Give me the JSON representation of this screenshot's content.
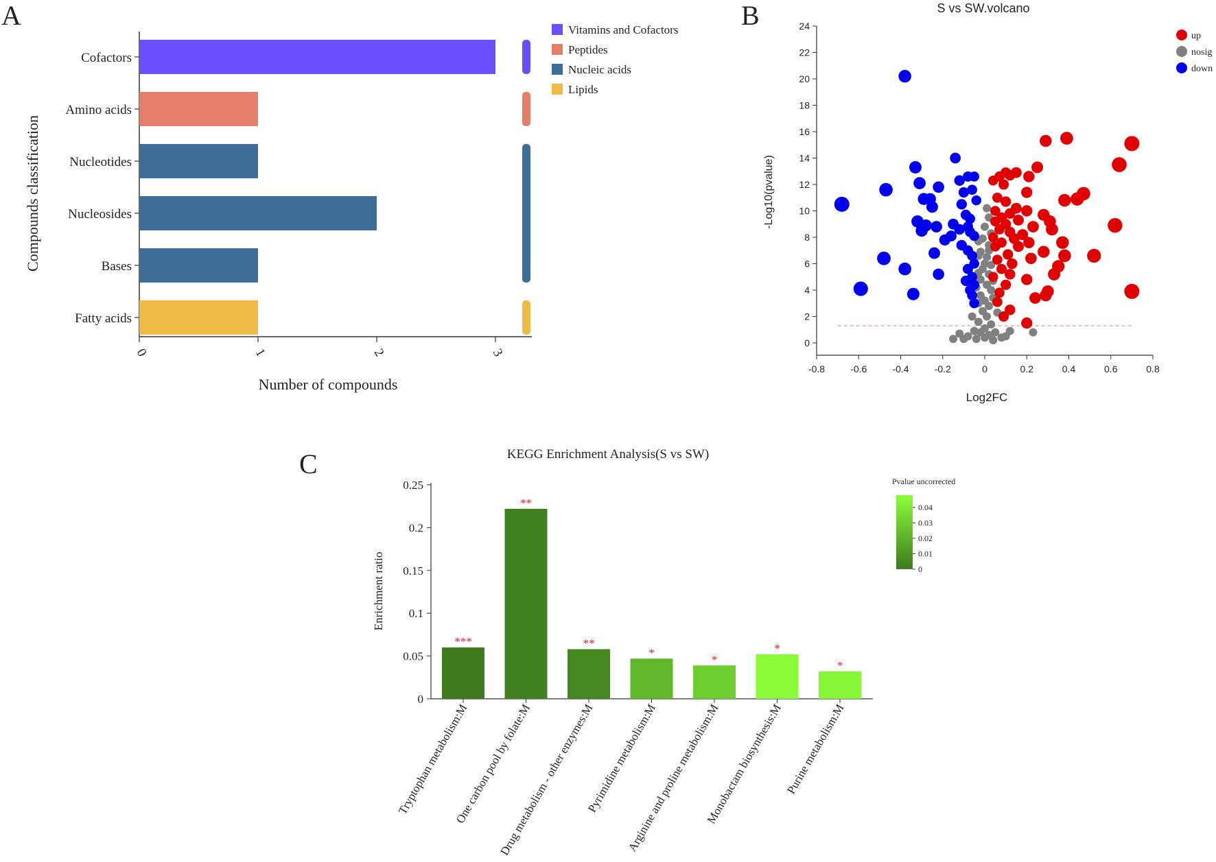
{
  "panels": {
    "a": "A",
    "b": "B",
    "c": "C"
  },
  "chart_data": [
    {
      "id": "panel-a",
      "type": "bar",
      "orientation": "horizontal",
      "xlabel": "Number of compounds",
      "ylabel": "Compounds classification",
      "xlim": [
        0,
        3.3
      ],
      "xticks": [
        "0",
        "1",
        "2",
        "3"
      ],
      "categories": [
        "Cofactors",
        "Amino acids",
        "Nucleotides",
        "Nucleosides",
        "Bases",
        "Fatty acids"
      ],
      "values": [
        3,
        1,
        1,
        2,
        1,
        1
      ],
      "groups": [
        "Vitamins and Cofactors",
        "Peptides",
        "Nucleic acids",
        "Nucleic acids",
        "Nucleic acids",
        "Lipids"
      ],
      "legend": [
        {
          "label": "Vitamins and Cofactors",
          "color": "#6b4fff"
        },
        {
          "label": "Peptides",
          "color": "#e57e6b"
        },
        {
          "label": "Nucleic acids",
          "color": "#3e6d98"
        },
        {
          "label": "Lipids",
          "color": "#efbb45"
        }
      ],
      "legend_position": "top-right"
    },
    {
      "id": "panel-b",
      "type": "scatter",
      "title": "S vs SW.volcano",
      "xlabel": "Log2FC",
      "ylabel": "-Log10(pvalue)",
      "xlim": [
        -0.8,
        0.8
      ],
      "ylim": [
        0,
        24
      ],
      "xticks": [
        "-0.8",
        "-0.6",
        "-0.4",
        "-0.2",
        "0",
        "0.2",
        "0.4",
        "0.6",
        "0.8"
      ],
      "yticks": [
        "0",
        "2",
        "4",
        "6",
        "8",
        "10",
        "12",
        "14",
        "16",
        "18",
        "20",
        "22",
        "24"
      ],
      "threshold": 1.3,
      "legend": [
        {
          "label": "up",
          "color": "#e00000"
        },
        {
          "label": "nosig",
          "color": "#808080"
        },
        {
          "label": "down",
          "color": "#0000ee"
        }
      ],
      "legend_position": "top-right",
      "series": [
        {
          "name": "down",
          "points": [
            [
              -0.38,
              20.2
            ],
            [
              -0.68,
              10.5
            ],
            [
              -0.47,
              11.6
            ],
            [
              -0.33,
              13.3
            ],
            [
              -0.14,
              14.0
            ],
            [
              -0.31,
              12.1
            ],
            [
              -0.22,
              11.8
            ],
            [
              -0.26,
              10.9
            ],
            [
              -0.29,
              10.9
            ],
            [
              -0.25,
              10.3
            ],
            [
              -0.1,
              11.4
            ],
            [
              -0.08,
              12.6
            ],
            [
              -0.12,
              12.3
            ],
            [
              -0.05,
              12.6
            ],
            [
              -0.06,
              11.6
            ],
            [
              -0.04,
              10.8
            ],
            [
              -0.11,
              10.5
            ],
            [
              -0.09,
              9.7
            ],
            [
              -0.07,
              9.4
            ],
            [
              -0.15,
              9.0
            ],
            [
              -0.12,
              8.6
            ],
            [
              -0.08,
              8.8
            ],
            [
              -0.32,
              9.2
            ],
            [
              -0.28,
              8.9
            ],
            [
              -0.23,
              8.8
            ],
            [
              -0.3,
              8.5
            ],
            [
              -0.19,
              7.8
            ],
            [
              -0.16,
              8.1
            ],
            [
              -0.07,
              8.4
            ],
            [
              -0.05,
              8.1
            ],
            [
              -0.11,
              7.4
            ],
            [
              -0.08,
              7.0
            ],
            [
              -0.24,
              6.8
            ],
            [
              -0.06,
              6.6
            ],
            [
              -0.05,
              6.0
            ],
            [
              -0.48,
              6.4
            ],
            [
              -0.38,
              5.6
            ],
            [
              -0.22,
              5.2
            ],
            [
              -0.08,
              5.6
            ],
            [
              -0.06,
              5.0
            ],
            [
              -0.05,
              4.4
            ],
            [
              -0.09,
              4.7
            ],
            [
              -0.06,
              3.6
            ],
            [
              -0.59,
              4.1
            ],
            [
              -0.34,
              3.7
            ],
            [
              -0.05,
              3.0
            ],
            [
              -0.07,
              4.0
            ]
          ]
        },
        {
          "name": "up",
          "points": [
            [
              0.7,
              15.1
            ],
            [
              0.39,
              15.5
            ],
            [
              0.29,
              15.3
            ],
            [
              0.64,
              13.5
            ],
            [
              0.25,
              13.3
            ],
            [
              0.15,
              12.9
            ],
            [
              0.1,
              12.9
            ],
            [
              0.12,
              12.7
            ],
            [
              0.21,
              12.6
            ],
            [
              0.07,
              12.6
            ],
            [
              0.04,
              12.3
            ],
            [
              0.09,
              12.0
            ],
            [
              0.2,
              11.4
            ],
            [
              0.47,
              11.3
            ],
            [
              0.44,
              10.9
            ],
            [
              0.38,
              10.8
            ],
            [
              0.06,
              11.0
            ],
            [
              0.1,
              10.7
            ],
            [
              0.15,
              10.2
            ],
            [
              0.2,
              10.0
            ],
            [
              0.05,
              10.0
            ],
            [
              0.12,
              9.8
            ],
            [
              0.28,
              9.7
            ],
            [
              0.08,
              9.5
            ],
            [
              0.16,
              9.3
            ],
            [
              0.05,
              9.2
            ],
            [
              0.31,
              9.2
            ],
            [
              0.1,
              9.0
            ],
            [
              0.62,
              8.9
            ],
            [
              0.23,
              8.8
            ],
            [
              0.32,
              8.6
            ],
            [
              0.07,
              8.6
            ],
            [
              0.12,
              8.4
            ],
            [
              0.18,
              8.2
            ],
            [
              0.04,
              8.0
            ],
            [
              0.14,
              7.9
            ],
            [
              0.21,
              7.6
            ],
            [
              0.37,
              7.6
            ],
            [
              0.08,
              7.6
            ],
            [
              0.16,
              7.3
            ],
            [
              0.05,
              7.3
            ],
            [
              0.28,
              6.9
            ],
            [
              0.52,
              6.6
            ],
            [
              0.38,
              6.6
            ],
            [
              0.11,
              6.7
            ],
            [
              0.06,
              6.3
            ],
            [
              0.22,
              6.4
            ],
            [
              0.13,
              6.0
            ],
            [
              0.35,
              5.8
            ],
            [
              0.08,
              5.6
            ],
            [
              0.33,
              5.2
            ],
            [
              0.2,
              4.8
            ],
            [
              0.04,
              5.0
            ],
            [
              0.12,
              5.2
            ],
            [
              0.7,
              3.9
            ],
            [
              0.3,
              3.9
            ],
            [
              0.29,
              3.6
            ],
            [
              0.24,
              3.4
            ],
            [
              0.1,
              4.4
            ],
            [
              0.07,
              3.8
            ],
            [
              0.06,
              3.1
            ],
            [
              0.12,
              2.5
            ],
            [
              0.09,
              2.0
            ],
            [
              0.2,
              1.5
            ]
          ]
        },
        {
          "name": "nosig",
          "points": [
            [
              0.01,
              10.2
            ],
            [
              0.02,
              9.5
            ],
            [
              0.0,
              8.8
            ],
            [
              0.03,
              8.3
            ],
            [
              -0.01,
              7.9
            ],
            [
              0.02,
              7.4
            ],
            [
              -0.02,
              6.9
            ],
            [
              0.01,
              6.5
            ],
            [
              0.0,
              6.0
            ],
            [
              -0.01,
              5.6
            ],
            [
              0.02,
              5.2
            ],
            [
              -0.02,
              4.8
            ],
            [
              0.01,
              4.4
            ],
            [
              0.03,
              4.0
            ],
            [
              -0.02,
              3.6
            ],
            [
              0.0,
              3.2
            ],
            [
              0.02,
              2.8
            ],
            [
              -0.01,
              2.4
            ],
            [
              0.01,
              2.0
            ],
            [
              -0.03,
              1.6
            ],
            [
              0.03,
              1.4
            ],
            [
              0.0,
              1.1
            ],
            [
              -0.02,
              0.8
            ],
            [
              0.02,
              0.6
            ],
            [
              -0.05,
              0.9
            ],
            [
              0.05,
              0.8
            ],
            [
              -0.08,
              0.5
            ],
            [
              0.08,
              0.4
            ],
            [
              -0.12,
              0.7
            ],
            [
              0.12,
              0.9
            ],
            [
              -0.15,
              0.3
            ],
            [
              0.04,
              0.2
            ],
            [
              -0.04,
              0.3
            ],
            [
              0.23,
              0.8
            ],
            [
              0.1,
              0.5
            ],
            [
              -0.1,
              0.3
            ],
            [
              0.0,
              0.4
            ],
            [
              -0.06,
              2.0
            ],
            [
              0.06,
              2.3
            ],
            [
              -0.03,
              3.0
            ],
            [
              0.04,
              3.4
            ],
            [
              -0.04,
              4.2
            ],
            [
              0.04,
              4.7
            ],
            [
              -0.03,
              5.3
            ],
            [
              0.03,
              5.9
            ],
            [
              -0.03,
              6.6
            ],
            [
              0.02,
              7.0
            ],
            [
              -0.03,
              7.7
            ]
          ]
        }
      ]
    },
    {
      "id": "panel-c",
      "type": "bar",
      "title": "KEGG Enrichment Analysis(S vs SW)",
      "xlabel": "",
      "ylabel": "Enrichment ratio",
      "ylim": [
        0,
        0.25
      ],
      "yticks": [
        "0",
        "0.05",
        "0.1",
        "0.15",
        "0.2",
        "0.25"
      ],
      "categories": [
        "Tryptophan metabolism:M",
        "One carbon pool by folate:M",
        "Drug metabolism - other enzymes:M",
        "Pyrimidine metabolism:M",
        "Arginine and proline metabolism:M",
        "Monobactam biosynthesis:M",
        "Purine metabolism:M"
      ],
      "values": [
        0.06,
        0.222,
        0.058,
        0.047,
        0.039,
        0.052,
        0.032
      ],
      "pvalues": [
        0.0005,
        0.002,
        0.005,
        0.022,
        0.03,
        0.047,
        0.045
      ],
      "stars": [
        "***",
        "**",
        "**",
        "*",
        "*",
        "*",
        "*"
      ],
      "colorbar": {
        "title": "Pvalue uncorrected",
        "ticks": [
          "0.04",
          "0.03",
          "0.02",
          "0.01",
          "0"
        ],
        "low_color": "#3d7a1e",
        "high_color": "#8cff3a"
      }
    }
  ]
}
